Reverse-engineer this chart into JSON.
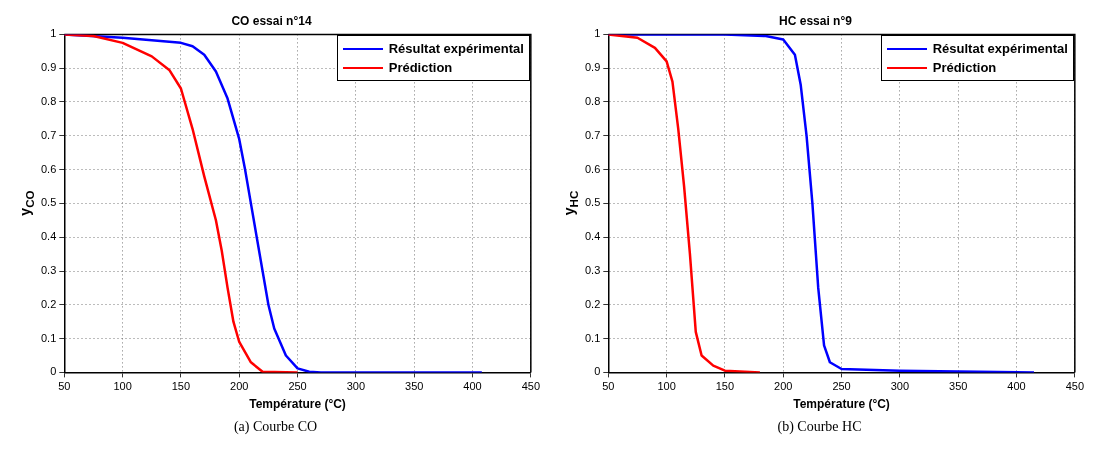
{
  "chart_data": [
    {
      "type": "line",
      "title": "CO essai n°14",
      "xlabel": "Température (°C)",
      "ylabel": "y$_{CO}$",
      "xlim": [
        50,
        450
      ],
      "ylim": [
        0,
        1
      ],
      "xticks": [
        50,
        100,
        150,
        200,
        250,
        300,
        350,
        400,
        450
      ],
      "yticks": [
        0,
        0.1,
        0.2,
        0.3,
        0.4,
        0.5,
        0.6,
        0.7,
        0.8,
        0.9,
        1
      ],
      "grid": true,
      "legend": "top right",
      "marker": "none",
      "line_style": "solid",
      "annotations": [
        "(a) Courbe CO"
      ],
      "series": [
        {
          "name": "Résultat expérimental",
          "color": "#0000ff",
          "x": [
            50,
            100,
            150,
            160,
            170,
            180,
            190,
            200,
            205,
            210,
            215,
            220,
            225,
            230,
            240,
            250,
            260,
            270,
            408
          ],
          "values": [
            1,
            0.99,
            0.975,
            0.965,
            0.94,
            0.89,
            0.81,
            0.69,
            0.6,
            0.5,
            0.4,
            0.3,
            0.2,
            0.13,
            0.05,
            0.012,
            0.002,
            0,
            0
          ]
        },
        {
          "name": "Prédiction",
          "color": "#ff0000",
          "x": [
            50,
            75,
            100,
            125,
            140,
            150,
            160,
            170,
            180,
            185,
            190,
            195,
            200,
            210,
            220,
            250
          ],
          "values": [
            1,
            0.995,
            0.975,
            0.935,
            0.895,
            0.84,
            0.72,
            0.58,
            0.45,
            0.36,
            0.25,
            0.15,
            0.09,
            0.03,
            0.002,
            0
          ]
        }
      ]
    },
    {
      "type": "line",
      "title": "HC essai n°9",
      "xlabel": "Température (°C)",
      "ylabel": "y$_{HC}$",
      "xlim": [
        50,
        450
      ],
      "ylim": [
        0,
        1
      ],
      "xticks": [
        50,
        100,
        150,
        200,
        250,
        300,
        350,
        400,
        450
      ],
      "yticks": [
        0,
        0.1,
        0.2,
        0.3,
        0.4,
        0.5,
        0.6,
        0.7,
        0.8,
        0.9,
        1
      ],
      "grid": true,
      "legend": "top right",
      "marker": "none",
      "line_style": "solid",
      "annotations": [
        "(b) Courbe HC"
      ],
      "series": [
        {
          "name": "Résultat expérimental",
          "color": "#0000ff",
          "x": [
            50,
            150,
            185,
            200,
            210,
            215,
            220,
            225,
            230,
            235,
            240,
            250,
            300,
            415
          ],
          "values": [
            1,
            1,
            0.995,
            0.985,
            0.94,
            0.85,
            0.7,
            0.5,
            0.25,
            0.08,
            0.03,
            0.01,
            0.005,
            0
          ]
        },
        {
          "name": "Prédiction",
          "color": "#ff0000",
          "x": [
            50,
            75,
            90,
            100,
            105,
            110,
            115,
            120,
            125,
            130,
            140,
            150,
            180
          ],
          "values": [
            1,
            0.99,
            0.96,
            0.92,
            0.86,
            0.72,
            0.55,
            0.35,
            0.12,
            0.05,
            0.02,
            0.005,
            0
          ]
        }
      ]
    }
  ]
}
